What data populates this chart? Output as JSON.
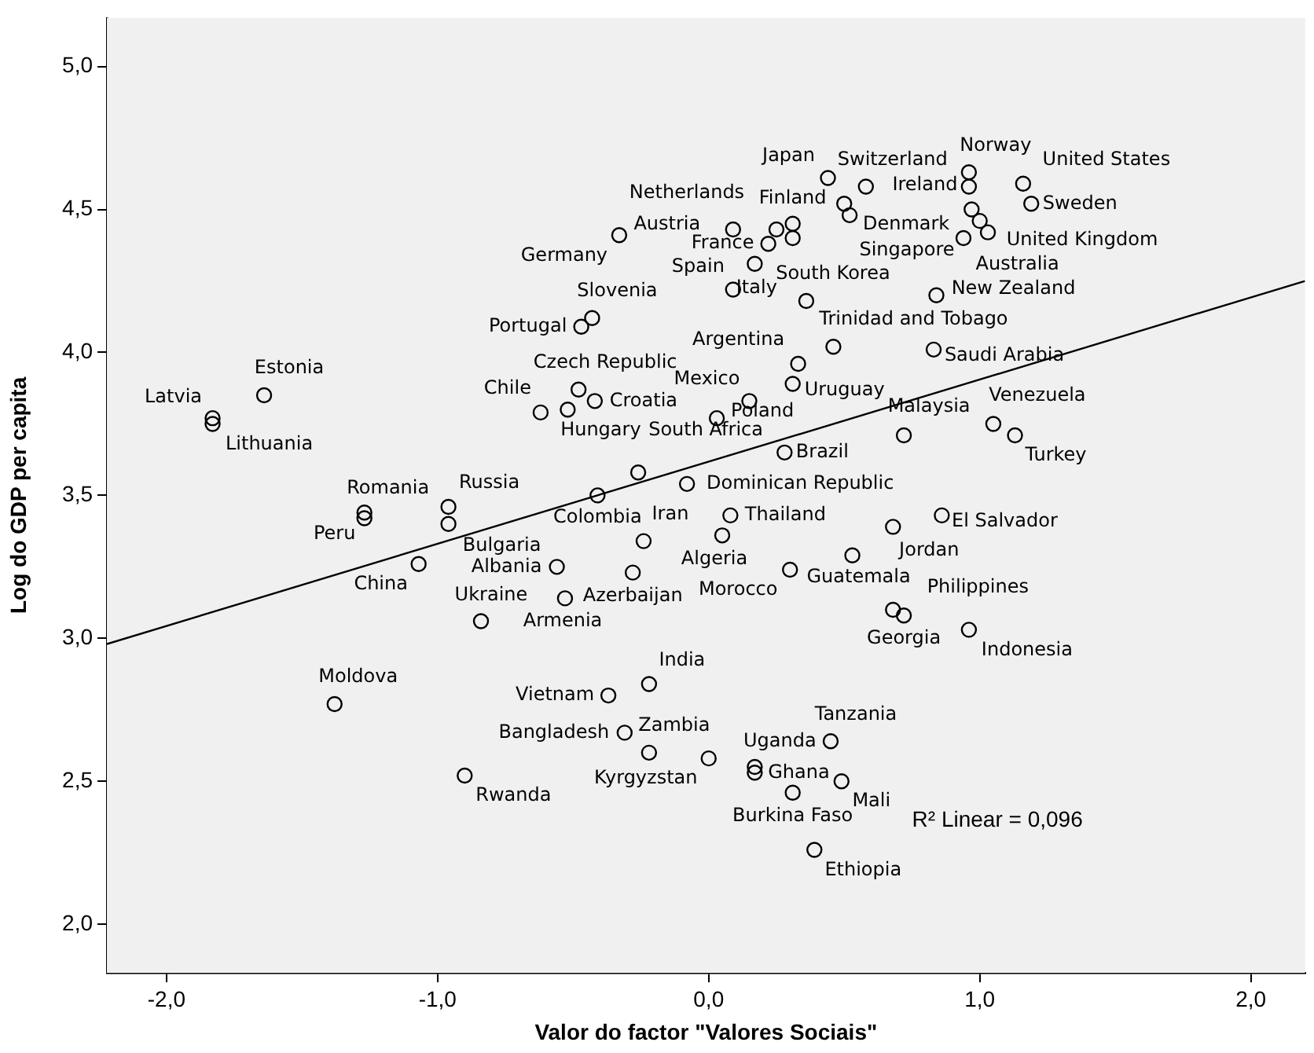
{
  "chart_data": {
    "type": "scatter",
    "xlabel": "Valor do factor \"Valores Sociais\"",
    "ylabel": "Log do GDP per capita",
    "xlim": [
      -2.22,
      2.2
    ],
    "ylim": [
      1.83,
      5.17
    ],
    "xticks": [
      {
        "value": -2,
        "label": "-2,0"
      },
      {
        "value": -1,
        "label": "-1,0"
      },
      {
        "value": 0,
        "label": "0,0"
      },
      {
        "value": 1,
        "label": "1,0"
      },
      {
        "value": 2,
        "label": "2,0"
      }
    ],
    "yticks": [
      {
        "value": 2,
        "label": "2,0"
      },
      {
        "value": 2.5,
        "label": "2,5"
      },
      {
        "value": 3,
        "label": "3,0"
      },
      {
        "value": 3.5,
        "label": "3,5"
      },
      {
        "value": 4,
        "label": "4,0"
      },
      {
        "value": 4.5,
        "label": "4,5"
      },
      {
        "value": 5,
        "label": "5,0"
      }
    ],
    "grid": false,
    "legend": false,
    "marker": "circle",
    "series": [
      {
        "type": "scatter",
        "color": "#000000",
        "x": [
          -1.83,
          -1.83,
          -1.64,
          -0.33,
          0.09,
          0.25,
          0.22,
          0.31,
          0.17,
          0.09,
          0.36,
          0.44,
          0.58,
          0.52,
          0.96,
          0.96,
          1.16,
          1.19,
          1.0,
          1.03,
          0.94,
          0.84,
          0.46,
          0.83,
          0.33,
          0.15,
          0.31,
          0.03,
          0.72,
          1.05,
          1.13,
          0.28,
          -0.26,
          -0.08,
          0.08,
          0.86,
          0.68,
          0.05,
          -0.24,
          -0.41,
          0.53,
          0.3,
          -1.07,
          -0.56,
          -0.53,
          -0.28,
          -0.84,
          -1.38,
          -0.22,
          -0.37,
          -0.31,
          -0.22,
          0.0,
          -0.9,
          0.45,
          0.17,
          0.17,
          0.49,
          0.31,
          0.39,
          0.72,
          0.68,
          0.96,
          -0.43,
          -0.47,
          -0.48,
          -0.42,
          -0.52,
          -0.62,
          -1.27,
          -1.27,
          -0.96,
          -0.96,
          0.31,
          0.5,
          0.97
        ],
        "values": [
          3.77,
          3.75,
          3.85,
          4.41,
          4.43,
          4.43,
          4.38,
          4.45,
          4.31,
          4.22,
          4.18,
          4.61,
          4.58,
          4.48,
          4.63,
          4.58,
          4.59,
          4.52,
          4.46,
          4.42,
          4.4,
          4.2,
          4.02,
          4.01,
          3.96,
          3.83,
          3.89,
          3.77,
          3.71,
          3.75,
          3.71,
          3.65,
          3.58,
          3.54,
          3.43,
          3.43,
          3.39,
          3.36,
          3.34,
          3.5,
          3.29,
          3.24,
          3.26,
          3.25,
          3.14,
          3.23,
          3.06,
          2.77,
          2.84,
          2.8,
          2.67,
          2.6,
          2.58,
          2.52,
          2.64,
          2.55,
          2.53,
          2.5,
          2.46,
          2.26,
          3.08,
          3.1,
          3.03,
          4.12,
          4.09,
          3.87,
          3.83,
          3.8,
          3.79,
          3.44,
          3.42,
          3.46,
          3.4,
          4.4,
          4.52,
          4.5
        ]
      },
      {
        "type": "line",
        "color": "#000000",
        "marker": "none",
        "x": [
          -2.22,
          2.2
        ],
        "values": [
          2.98,
          4.25
        ]
      }
    ],
    "annotations": [
      {
        "text": "Latvia",
        "x": -1.83,
        "y": 3.77
      },
      {
        "text": "Lithuania",
        "x": -1.83,
        "y": 3.75
      },
      {
        "text": "Estonia",
        "x": -1.64,
        "y": 3.85
      },
      {
        "text": "Germany",
        "x": -0.33,
        "y": 4.41
      },
      {
        "text": "Austria",
        "x": 0.09,
        "y": 4.43
      },
      {
        "text": "Netherlands",
        "x": 0.25,
        "y": 4.43
      },
      {
        "text": "France",
        "x": 0.22,
        "y": 4.38
      },
      {
        "text": "Finland",
        "x": 0.31,
        "y": 4.45
      },
      {
        "text": "Spain",
        "x": 0.17,
        "y": 4.31
      },
      {
        "text": "Italy",
        "x": 0.09,
        "y": 4.22
      },
      {
        "text": "South Korea",
        "x": 0.36,
        "y": 4.18
      },
      {
        "text": "Japan",
        "x": 0.44,
        "y": 4.61
      },
      {
        "text": "Switzerland",
        "x": 0.58,
        "y": 4.58
      },
      {
        "text": "Denmark",
        "x": 0.52,
        "y": 4.48
      },
      {
        "text": "Norway",
        "x": 0.96,
        "y": 4.63
      },
      {
        "text": "Ireland",
        "x": 0.96,
        "y": 4.58
      },
      {
        "text": "United States",
        "x": 1.16,
        "y": 4.59
      },
      {
        "text": "Sweden",
        "x": 1.19,
        "y": 4.52
      },
      {
        "text": "United Kingdom",
        "x": 1.03,
        "y": 4.42
      },
      {
        "text": "Australia",
        "x": 1.0,
        "y": 4.46
      },
      {
        "text": "Singapore",
        "x": 0.94,
        "y": 4.4
      },
      {
        "text": "New Zealand",
        "x": 0.84,
        "y": 4.2
      },
      {
        "text": "Trinidad and Tobago",
        "x": 0.46,
        "y": 4.02
      },
      {
        "text": "Saudi Arabia",
        "x": 0.83,
        "y": 4.01
      },
      {
        "text": "Argentina",
        "x": 0.33,
        "y": 3.96
      },
      {
        "text": "Mexico",
        "x": 0.15,
        "y": 3.83
      },
      {
        "text": "Uruguay",
        "x": 0.31,
        "y": 3.89
      },
      {
        "text": "Poland",
        "x": 0.03,
        "y": 3.77
      },
      {
        "text": "Malaysia",
        "x": 0.72,
        "y": 3.71
      },
      {
        "text": "Venezuela",
        "x": 1.05,
        "y": 3.75
      },
      {
        "text": "Turkey",
        "x": 1.13,
        "y": 3.71
      },
      {
        "text": "Brazil",
        "x": 0.28,
        "y": 3.65
      },
      {
        "text": "South Africa",
        "x": -0.26,
        "y": 3.58
      },
      {
        "text": "Dominican Republic",
        "x": -0.08,
        "y": 3.54
      },
      {
        "text": "Thailand",
        "x": 0.08,
        "y": 3.43
      },
      {
        "text": "El Salvador",
        "x": 0.86,
        "y": 3.43
      },
      {
        "text": "Jordan",
        "x": 0.68,
        "y": 3.39
      },
      {
        "text": "Algeria",
        "x": 0.05,
        "y": 3.36
      },
      {
        "text": "Iran",
        "x": -0.24,
        "y": 3.34
      },
      {
        "text": "Colombia",
        "x": -0.41,
        "y": 3.5
      },
      {
        "text": "Guatemala",
        "x": 0.53,
        "y": 3.29
      },
      {
        "text": "Morocco",
        "x": 0.3,
        "y": 3.24
      },
      {
        "text": "China",
        "x": -1.07,
        "y": 3.26
      },
      {
        "text": "Albania",
        "x": -0.56,
        "y": 3.25
      },
      {
        "text": "Ukraine",
        "x": -0.53,
        "y": 3.14
      },
      {
        "text": "Azerbaijan",
        "x": -0.28,
        "y": 3.23
      },
      {
        "text": "Armenia",
        "x": -0.84,
        "y": 3.06
      },
      {
        "text": "Moldova",
        "x": -1.38,
        "y": 2.77
      },
      {
        "text": "India",
        "x": -0.22,
        "y": 2.84
      },
      {
        "text": "Vietnam",
        "x": -0.37,
        "y": 2.8
      },
      {
        "text": "Bangladesh",
        "x": -0.31,
        "y": 2.67
      },
      {
        "text": "Zambia",
        "x": -0.22,
        "y": 2.6
      },
      {
        "text": "Kyrgyzstan",
        "x": 0.0,
        "y": 2.58
      },
      {
        "text": "Rwanda",
        "x": -0.9,
        "y": 2.52
      },
      {
        "text": "Tanzania",
        "x": 0.45,
        "y": 2.64
      },
      {
        "text": "Uganda",
        "x": 0.17,
        "y": 2.55
      },
      {
        "text": "Ghana",
        "x": 0.17,
        "y": 2.53
      },
      {
        "text": "Mali",
        "x": 0.49,
        "y": 2.5
      },
      {
        "text": "Burkina Faso",
        "x": 0.31,
        "y": 2.46
      },
      {
        "text": "Ethiopia",
        "x": 0.39,
        "y": 2.26
      },
      {
        "text": "Georgia",
        "x": 0.72,
        "y": 3.08
      },
      {
        "text": "Philippines",
        "x": 0.68,
        "y": 3.1
      },
      {
        "text": "Indonesia",
        "x": 0.96,
        "y": 3.03
      },
      {
        "text": "Slovenia",
        "x": -0.43,
        "y": 4.12
      },
      {
        "text": "Portugal",
        "x": -0.47,
        "y": 4.09
      },
      {
        "text": "Czech Republic",
        "x": -0.48,
        "y": 3.87
      },
      {
        "text": "Croatia",
        "x": -0.42,
        "y": 3.83
      },
      {
        "text": "Hungary",
        "x": -0.52,
        "y": 3.8
      },
      {
        "text": "Chile",
        "x": -0.62,
        "y": 3.79
      },
      {
        "text": "Romania",
        "x": -1.27,
        "y": 3.44
      },
      {
        "text": "Peru",
        "x": -1.27,
        "y": 3.42
      },
      {
        "text": "Russia",
        "x": -0.96,
        "y": 3.46
      },
      {
        "text": "Bulgaria",
        "x": -0.96,
        "y": 3.4
      },
      "R² Linear = 0,096"
    ]
  }
}
